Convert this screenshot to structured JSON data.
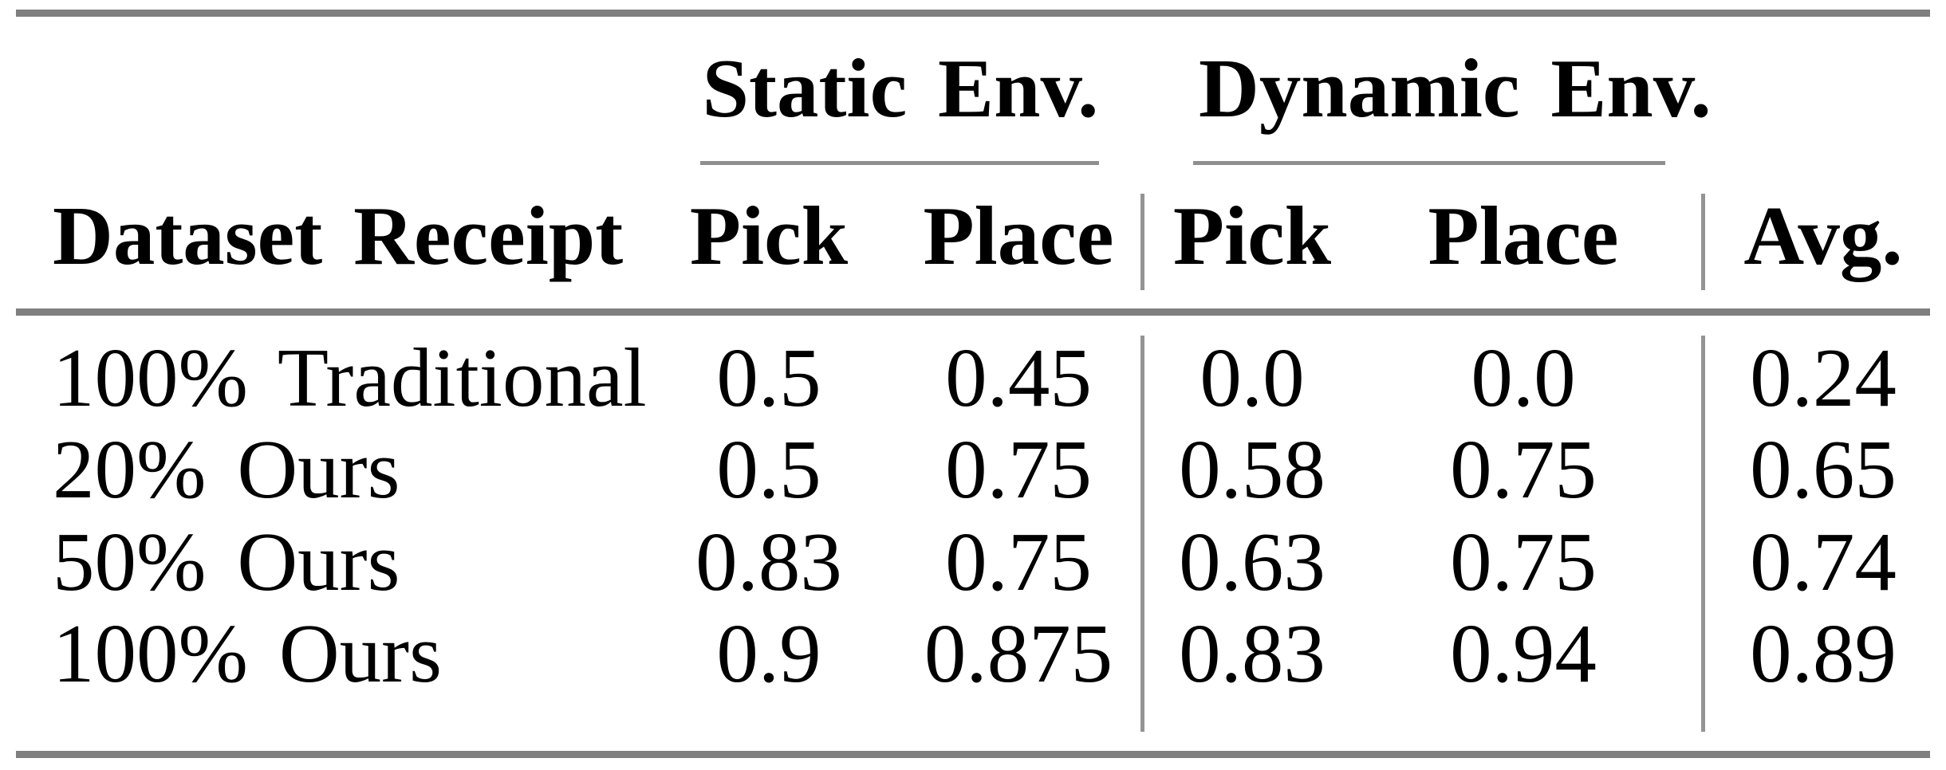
{
  "table": {
    "col_groups": [
      {
        "label": "Static Env."
      },
      {
        "label": "Dynamic Env."
      }
    ],
    "header": {
      "dataset": "Dataset Receipt",
      "static_pick": "Pick",
      "static_place": "Place",
      "dynamic_pick": "Pick",
      "dynamic_place": "Place",
      "avg": "Avg."
    },
    "rows": [
      {
        "label": "100% Traditional",
        "static_pick": "0.5",
        "static_place": "0.45",
        "dynamic_pick": "0.0",
        "dynamic_place": "0.0",
        "avg": "0.24"
      },
      {
        "label": "20% Ours",
        "static_pick": "0.5",
        "static_place": "0.75",
        "dynamic_pick": "0.58",
        "dynamic_place": "0.75",
        "avg": "0.65"
      },
      {
        "label": "50% Ours",
        "static_pick": "0.83",
        "static_place": "0.75",
        "dynamic_pick": "0.63",
        "dynamic_place": "0.75",
        "avg": "0.74"
      },
      {
        "label": "100% Ours",
        "static_pick": "0.9",
        "static_place": "0.875",
        "dynamic_pick": "0.83",
        "dynamic_place": "0.94",
        "avg": "0.89"
      }
    ],
    "colors": {
      "thick_rule": "#7f7f7f",
      "thin_rule": "#8f8f8f",
      "separator": "#949494",
      "text": "#000000",
      "background": "#ffffff"
    }
  }
}
